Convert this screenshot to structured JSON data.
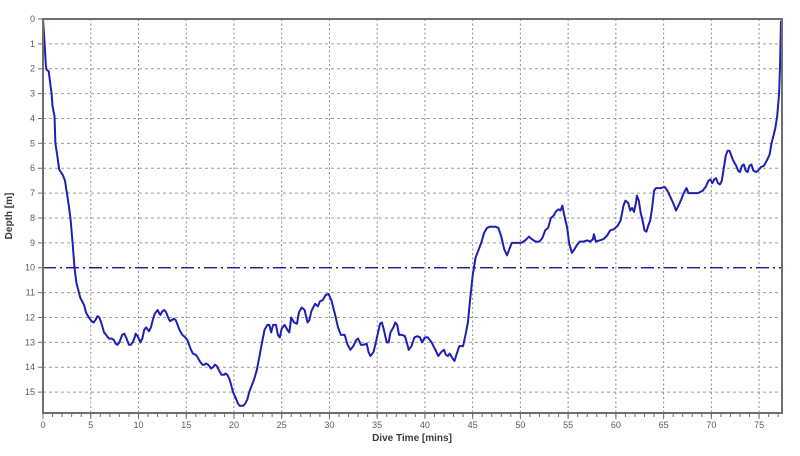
{
  "chart_data": {
    "type": "line",
    "title": "",
    "xlabel": "Dive Time [mins]",
    "ylabel": "Depth [m]",
    "xlim": [
      0,
      77.4
    ],
    "ylim": [
      0,
      15.84
    ],
    "y_inverted": true,
    "grid": "on",
    "legend": "none",
    "x_major_ticks": [
      0,
      5,
      10,
      15,
      20,
      25,
      30,
      35,
      40,
      45,
      50,
      55,
      60,
      65,
      70,
      75
    ],
    "x_minor_tick_step": 1,
    "y_major_ticks": [
      0,
      1,
      2,
      3,
      4,
      5,
      6,
      7,
      8,
      9,
      10,
      11,
      12,
      13,
      14,
      15
    ],
    "reference_line": {
      "axis": "y",
      "value": 10,
      "color": "#000080",
      "style": "dash-dot"
    },
    "colors": {
      "profile_line": "#1f1fb4",
      "plot_border": "#6f6f6f",
      "grid_horizontal": "#9c9c9c",
      "grid_vertical": "#8c8c8c",
      "tick_text": "#5a5a5a",
      "axis_title_text": "#3c3c3c",
      "background": "#ffffff"
    },
    "series": [
      {
        "name": "dive-depth-profile",
        "points": [
          [
            0,
            0
          ],
          [
            0.1,
            0.6
          ],
          [
            0.2,
            1.2
          ],
          [
            0.3,
            1.9
          ],
          [
            0.4,
            2.05
          ],
          [
            0.6,
            2.1
          ],
          [
            0.8,
            2.7
          ],
          [
            0.9,
            3
          ],
          [
            1,
            3.5
          ],
          [
            1.2,
            3.9
          ],
          [
            1.3,
            5
          ],
          [
            1.5,
            5.5
          ],
          [
            1.7,
            6.05
          ],
          [
            2.1,
            6.3
          ],
          [
            2.3,
            6.5
          ],
          [
            2.5,
            7
          ],
          [
            2.7,
            7.5
          ],
          [
            2.9,
            8.1
          ],
          [
            3.1,
            9
          ],
          [
            3.3,
            10
          ],
          [
            3.5,
            10.6
          ],
          [
            3.7,
            10.9
          ],
          [
            3.9,
            11.2
          ],
          [
            4.3,
            11.5
          ],
          [
            4.5,
            11.8
          ],
          [
            4.8,
            12
          ],
          [
            5.1,
            12.15
          ],
          [
            5.3,
            12.2
          ],
          [
            5.5,
            12.1
          ],
          [
            5.7,
            11.95
          ],
          [
            5.9,
            12
          ],
          [
            6.1,
            12.2
          ],
          [
            6.4,
            12.6
          ],
          [
            6.7,
            12.75
          ],
          [
            6.9,
            12.85
          ],
          [
            7.2,
            12.85
          ],
          [
            7.4,
            12.9
          ],
          [
            7.6,
            13.05
          ],
          [
            7.8,
            13.1
          ],
          [
            8,
            13
          ],
          [
            8.3,
            12.7
          ],
          [
            8.5,
            12.65
          ],
          [
            8.7,
            12.8
          ],
          [
            9,
            13.1
          ],
          [
            9.2,
            13.1
          ],
          [
            9.4,
            13
          ],
          [
            9.6,
            12.8
          ],
          [
            9.7,
            12.65
          ],
          [
            9.9,
            12.75
          ],
          [
            10.1,
            12.9
          ],
          [
            10.2,
            13
          ],
          [
            10.4,
            12.85
          ],
          [
            10.6,
            12.5
          ],
          [
            10.8,
            12.4
          ],
          [
            11,
            12.5
          ],
          [
            11.1,
            12.55
          ],
          [
            11.3,
            12.4
          ],
          [
            11.5,
            12.1
          ],
          [
            11.7,
            11.85
          ],
          [
            12,
            11.7
          ],
          [
            12.2,
            11.85
          ],
          [
            12.3,
            11.9
          ],
          [
            12.5,
            11.75
          ],
          [
            12.7,
            11.7
          ],
          [
            12.9,
            11.8
          ],
          [
            13.1,
            12
          ],
          [
            13.3,
            12.15
          ],
          [
            13.5,
            12.1
          ],
          [
            13.7,
            12.05
          ],
          [
            13.9,
            12.1
          ],
          [
            14.1,
            12.3
          ],
          [
            14.3,
            12.5
          ],
          [
            14.6,
            12.7
          ],
          [
            14.9,
            12.8
          ],
          [
            15.1,
            12.9
          ],
          [
            15.3,
            13.1
          ],
          [
            15.5,
            13.3
          ],
          [
            15.7,
            13.45
          ],
          [
            16,
            13.5
          ],
          [
            16.2,
            13.6
          ],
          [
            16.4,
            13.75
          ],
          [
            16.7,
            13.9
          ],
          [
            16.9,
            13.9
          ],
          [
            17.1,
            13.85
          ],
          [
            17.3,
            13.9
          ],
          [
            17.5,
            14
          ],
          [
            17.6,
            14.05
          ],
          [
            17.8,
            14
          ],
          [
            18,
            13.9
          ],
          [
            18.2,
            13.95
          ],
          [
            18.4,
            14.1
          ],
          [
            18.7,
            14.3
          ],
          [
            19,
            14.3
          ],
          [
            19.1,
            14.25
          ],
          [
            19.3,
            14.3
          ],
          [
            19.5,
            14.45
          ],
          [
            19.7,
            14.7
          ],
          [
            19.9,
            15
          ],
          [
            20.2,
            15.25
          ],
          [
            20.4,
            15.45
          ],
          [
            20.6,
            15.55
          ],
          [
            21,
            15.55
          ],
          [
            21.2,
            15.45
          ],
          [
            21.4,
            15.3
          ],
          [
            21.6,
            15
          ],
          [
            21.8,
            14.8
          ],
          [
            22.1,
            14.5
          ],
          [
            22.4,
            14.1
          ],
          [
            22.6,
            13.7
          ],
          [
            22.9,
            13.1
          ],
          [
            23.2,
            12.5
          ],
          [
            23.5,
            12.3
          ],
          [
            23.7,
            12.3
          ],
          [
            23.9,
            12.6
          ],
          [
            24.1,
            12.3
          ],
          [
            24.4,
            12.3
          ],
          [
            24.6,
            12.7
          ],
          [
            24.8,
            12.8
          ],
          [
            25,
            12.45
          ],
          [
            25.3,
            12.3
          ],
          [
            25.6,
            12.5
          ],
          [
            25.8,
            12.6
          ],
          [
            26,
            12
          ],
          [
            26.3,
            12.2
          ],
          [
            26.6,
            12.25
          ],
          [
            26.8,
            11.8
          ],
          [
            27.1,
            11.6
          ],
          [
            27.4,
            11.7
          ],
          [
            27.7,
            12.2
          ],
          [
            27.9,
            12.1
          ],
          [
            28.1,
            11.75
          ],
          [
            28.5,
            11.45
          ],
          [
            28.8,
            11.55
          ],
          [
            29,
            11.35
          ],
          [
            29.3,
            11.3
          ],
          [
            29.6,
            11.1
          ],
          [
            29.9,
            11.05
          ],
          [
            30.2,
            11.3
          ],
          [
            30.6,
            11.9
          ],
          [
            30.9,
            12.4
          ],
          [
            31.2,
            12.7
          ],
          [
            31.6,
            12.7
          ],
          [
            31.9,
            13.1
          ],
          [
            32.2,
            13.3
          ],
          [
            32.5,
            13.15
          ],
          [
            32.8,
            12.9
          ],
          [
            33,
            12.85
          ],
          [
            33.3,
            13.1
          ],
          [
            33.6,
            13.1
          ],
          [
            33.9,
            13.05
          ],
          [
            34.1,
            13.4
          ],
          [
            34.3,
            13.55
          ],
          [
            34.6,
            13.4
          ],
          [
            34.8,
            13.1
          ],
          [
            35.1,
            12.6
          ],
          [
            35.3,
            12.25
          ],
          [
            35.5,
            12.2
          ],
          [
            35.7,
            12.5
          ],
          [
            36,
            13
          ],
          [
            36.2,
            13
          ],
          [
            36.4,
            12.6
          ],
          [
            36.7,
            12.4
          ],
          [
            36.9,
            12.2
          ],
          [
            37.1,
            12.3
          ],
          [
            37.3,
            12.7
          ],
          [
            37.6,
            12.7
          ],
          [
            37.9,
            12.75
          ],
          [
            38.1,
            13
          ],
          [
            38.3,
            13.3
          ],
          [
            38.6,
            13.15
          ],
          [
            38.9,
            12.8
          ],
          [
            39.2,
            12.75
          ],
          [
            39.5,
            12.8
          ],
          [
            39.7,
            13
          ],
          [
            40,
            12.8
          ],
          [
            40.3,
            12.8
          ],
          [
            40.7,
            13
          ],
          [
            41.1,
            13.3
          ],
          [
            41.4,
            13.55
          ],
          [
            41.7,
            13.4
          ],
          [
            42,
            13.3
          ],
          [
            42.2,
            13.5
          ],
          [
            42.4,
            13.55
          ],
          [
            42.6,
            13.45
          ],
          [
            42.9,
            13.65
          ],
          [
            43.1,
            13.75
          ],
          [
            43.3,
            13.5
          ],
          [
            43.6,
            13.15
          ],
          [
            44,
            13.15
          ],
          [
            44.3,
            12.6
          ],
          [
            44.5,
            12.2
          ],
          [
            44.7,
            11.4
          ],
          [
            45,
            10.3
          ],
          [
            45.3,
            9.6
          ],
          [
            45.6,
            9.3
          ],
          [
            45.9,
            9
          ],
          [
            46.2,
            8.6
          ],
          [
            46.5,
            8.4
          ],
          [
            46.8,
            8.35
          ],
          [
            47.4,
            8.35
          ],
          [
            47.7,
            8.4
          ],
          [
            48,
            8.75
          ],
          [
            48.3,
            9.25
          ],
          [
            48.6,
            9.5
          ],
          [
            48.8,
            9.3
          ],
          [
            49.1,
            9
          ],
          [
            49.6,
            9
          ],
          [
            50.1,
            9
          ],
          [
            50.5,
            8.9
          ],
          [
            50.9,
            8.75
          ],
          [
            51.2,
            8.85
          ],
          [
            51.6,
            8.95
          ],
          [
            52,
            8.95
          ],
          [
            52.3,
            8.8
          ],
          [
            52.6,
            8.5
          ],
          [
            52.9,
            8.4
          ],
          [
            53.2,
            8
          ],
          [
            53.5,
            7.9
          ],
          [
            53.7,
            7.75
          ],
          [
            54,
            7.65
          ],
          [
            54.2,
            7.7
          ],
          [
            54.4,
            7.5
          ],
          [
            54.6,
            7.9
          ],
          [
            54.9,
            8.4
          ],
          [
            55.1,
            9
          ],
          [
            55.4,
            9.4
          ],
          [
            55.6,
            9.3
          ],
          [
            55.9,
            9.1
          ],
          [
            56.2,
            8.95
          ],
          [
            56.6,
            8.95
          ],
          [
            57,
            8.9
          ],
          [
            57.3,
            8.95
          ],
          [
            57.6,
            8.85
          ],
          [
            57.7,
            8.65
          ],
          [
            57.9,
            8.95
          ],
          [
            58.3,
            8.9
          ],
          [
            58.7,
            8.85
          ],
          [
            59.1,
            8.7
          ],
          [
            59.4,
            8.5
          ],
          [
            59.8,
            8.45
          ],
          [
            60.2,
            8.3
          ],
          [
            60.5,
            8.1
          ],
          [
            60.8,
            7.5
          ],
          [
            61,
            7.3
          ],
          [
            61.3,
            7.4
          ],
          [
            61.5,
            7.7
          ],
          [
            61.7,
            7.6
          ],
          [
            61.9,
            7.75
          ],
          [
            62.1,
            7.4
          ],
          [
            62.2,
            7.1
          ],
          [
            62.4,
            7.3
          ],
          [
            62.6,
            7.8
          ],
          [
            62.8,
            8.1
          ],
          [
            63,
            8.5
          ],
          [
            63.2,
            8.55
          ],
          [
            63.4,
            8.3
          ],
          [
            63.6,
            8.1
          ],
          [
            63.8,
            7.6
          ],
          [
            64,
            6.9
          ],
          [
            64.2,
            6.8
          ],
          [
            64.7,
            6.8
          ],
          [
            65.1,
            6.75
          ],
          [
            65.4,
            6.9
          ],
          [
            65.7,
            7.15
          ],
          [
            66,
            7.4
          ],
          [
            66.3,
            7.7
          ],
          [
            66.5,
            7.55
          ],
          [
            66.8,
            7.3
          ],
          [
            67.1,
            7
          ],
          [
            67.4,
            6.8
          ],
          [
            67.6,
            7
          ],
          [
            68.1,
            7
          ],
          [
            68.6,
            7
          ],
          [
            69.1,
            6.9
          ],
          [
            69.4,
            6.75
          ],
          [
            69.7,
            6.5
          ],
          [
            69.9,
            6.45
          ],
          [
            70.1,
            6.6
          ],
          [
            70.3,
            6.45
          ],
          [
            70.5,
            6.4
          ],
          [
            70.7,
            6.6
          ],
          [
            70.9,
            6.65
          ],
          [
            71.1,
            6.5
          ],
          [
            71.3,
            6
          ],
          [
            71.5,
            5.5
          ],
          [
            71.7,
            5.3
          ],
          [
            71.9,
            5.3
          ],
          [
            72.1,
            5.5
          ],
          [
            72.3,
            5.7
          ],
          [
            72.6,
            5.9
          ],
          [
            72.8,
            6.1
          ],
          [
            73,
            6.15
          ],
          [
            73.2,
            5.9
          ],
          [
            73.4,
            5.85
          ],
          [
            73.6,
            6.1
          ],
          [
            73.8,
            6.15
          ],
          [
            74,
            5.9
          ],
          [
            74.2,
            5.85
          ],
          [
            74.4,
            6.1
          ],
          [
            74.7,
            6.15
          ],
          [
            74.9,
            6.1
          ],
          [
            75.2,
            5.95
          ],
          [
            75.5,
            5.9
          ],
          [
            75.8,
            5.7
          ],
          [
            76.1,
            5.45
          ],
          [
            76.3,
            5
          ],
          [
            76.5,
            4.7
          ],
          [
            76.7,
            4.4
          ],
          [
            76.9,
            3.9
          ],
          [
            77.1,
            3
          ],
          [
            77.2,
            1.8
          ],
          [
            77.3,
            0.1
          ]
        ]
      }
    ]
  }
}
